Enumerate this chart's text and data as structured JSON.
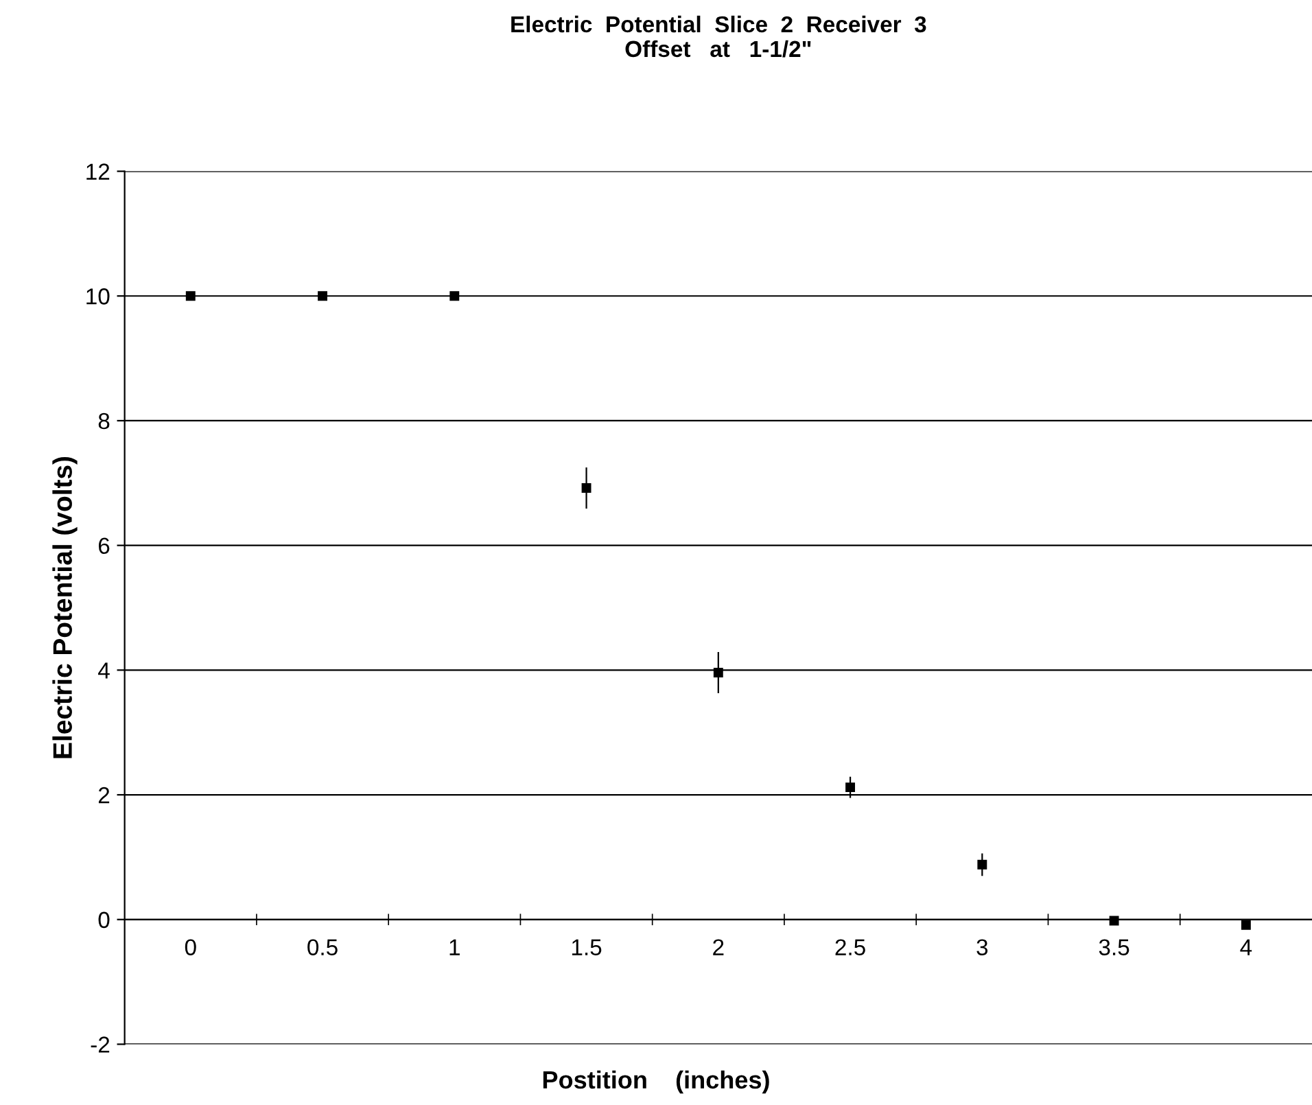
{
  "chart_data": {
    "type": "scatter",
    "title": "Electric  Potential  Slice  2  Receiver  3\nOffset   at   1-1/2\"",
    "xlabel": "Postition    (inches)",
    "ylabel": "Electric Potential (volts)",
    "categories": [
      "0",
      "0.5",
      "1",
      "1.5",
      "2",
      "2.5",
      "3",
      "3.5",
      "4"
    ],
    "series": [
      {
        "color": "#000000",
        "values": [
          10,
          10,
          10,
          6.92,
          3.96,
          2.12,
          0.88,
          -0.02,
          -0.09
        ],
        "errors": [
          null,
          null,
          null,
          0.33,
          0.33,
          0.17,
          0.18,
          null,
          null
        ]
      }
    ],
    "ylim": [
      -2,
      12
    ],
    "yticks": [
      -2,
      0,
      2,
      4,
      6,
      8,
      10,
      12
    ],
    "grid": "y",
    "marker": "square"
  }
}
